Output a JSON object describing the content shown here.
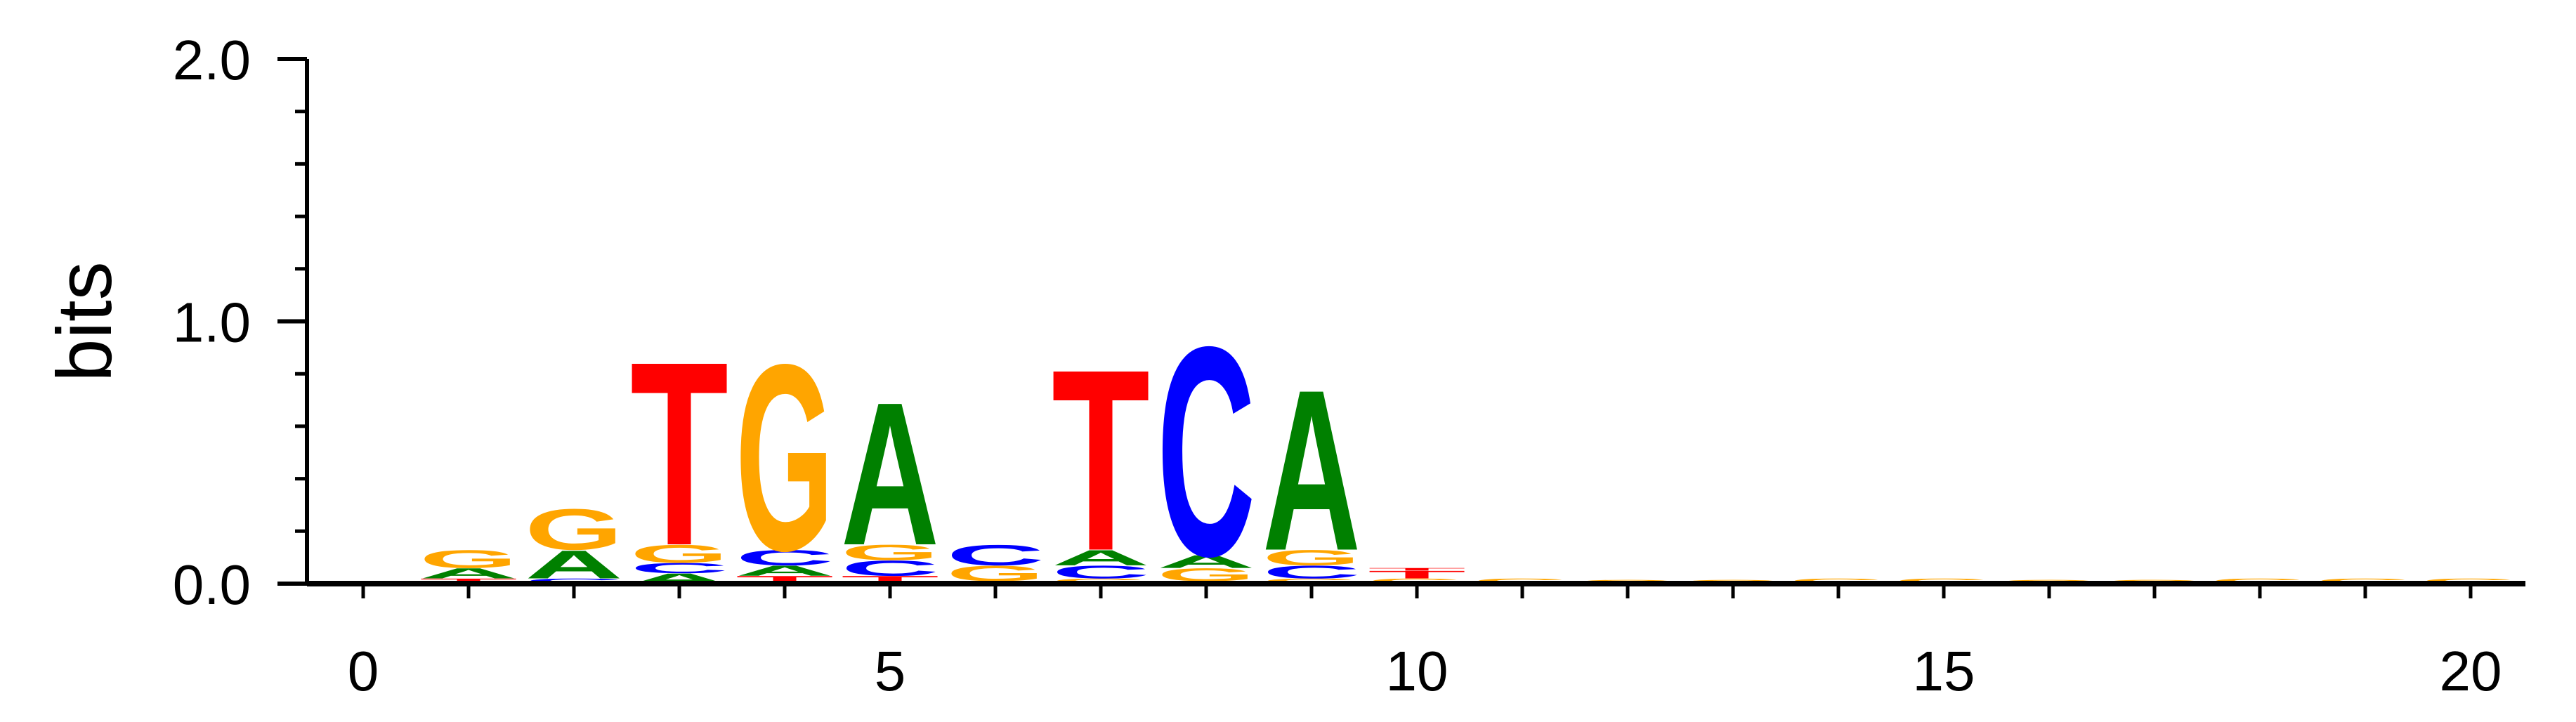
{
  "chart_data": {
    "type": "sequence-logo",
    "ylabel": "bits",
    "ylim": [
      0,
      2
    ],
    "xlim": [
      -0.5,
      20.5
    ],
    "y_ticks": [
      "0.0",
      "1.0",
      "2.0"
    ],
    "x_ticks": [
      "0",
      "5",
      "10",
      "15",
      "20"
    ],
    "colors": {
      "A": "#008000",
      "C": "#0000ff",
      "G": "#ffa500",
      "T": "#ff0000"
    },
    "positions": [
      {
        "pos": 1,
        "stack": [
          {
            "base": "T",
            "height": 0.02
          },
          {
            "base": "A",
            "height": 0.04
          },
          {
            "base": "G",
            "height": 0.07
          }
        ]
      },
      {
        "pos": 2,
        "stack": [
          {
            "base": "C",
            "height": 0.02
          },
          {
            "base": "A",
            "height": 0.11
          },
          {
            "base": "G",
            "height": 0.16
          }
        ]
      },
      {
        "pos": 3,
        "stack": [
          {
            "base": "A",
            "height": 0.04
          },
          {
            "base": "C",
            "height": 0.04
          },
          {
            "base": "G",
            "height": 0.07
          },
          {
            "base": "T",
            "height": 0.72
          }
        ]
      },
      {
        "pos": 4,
        "stack": [
          {
            "base": "T",
            "height": 0.03
          },
          {
            "base": "A",
            "height": 0.04
          },
          {
            "base": "C",
            "height": 0.06
          },
          {
            "base": "G",
            "height": 0.73
          }
        ]
      },
      {
        "pos": 5,
        "stack": [
          {
            "base": "T",
            "height": 0.03
          },
          {
            "base": "C",
            "height": 0.06
          },
          {
            "base": "G",
            "height": 0.06
          },
          {
            "base": "A",
            "height": 0.56
          }
        ]
      },
      {
        "pos": 6,
        "stack": [
          {
            "base": "T",
            "height": 0.01
          },
          {
            "base": "G",
            "height": 0.06
          },
          {
            "base": "C",
            "height": 0.08
          }
        ]
      },
      {
        "pos": 7,
        "stack": [
          {
            "base": "G",
            "height": 0.02
          },
          {
            "base": "C",
            "height": 0.05
          },
          {
            "base": "A",
            "height": 0.06
          },
          {
            "base": "T",
            "height": 0.71
          }
        ]
      },
      {
        "pos": 8,
        "stack": [
          {
            "base": "T",
            "height": 0.01
          },
          {
            "base": "G",
            "height": 0.05
          },
          {
            "base": "A",
            "height": 0.05
          },
          {
            "base": "C",
            "height": 0.82
          }
        ]
      },
      {
        "pos": 9,
        "stack": [
          {
            "base": "G",
            "height": 0.02
          },
          {
            "base": "C",
            "height": 0.05
          },
          {
            "base": "G",
            "height": 0.06
          },
          {
            "base": "A",
            "height": 0.63
          }
        ]
      },
      {
        "pos": 10,
        "stack": [
          {
            "base": "G",
            "height": 0.02
          },
          {
            "base": "T",
            "height": 0.03
          },
          {
            "base": "T",
            "height": 0.01
          }
        ]
      },
      {
        "pos": 11,
        "stack": [
          {
            "base": "G",
            "height": 0.02
          }
        ]
      },
      {
        "pos": 12,
        "stack": [
          {
            "base": "G",
            "height": 0.015
          }
        ]
      },
      {
        "pos": 13,
        "stack": [
          {
            "base": "G",
            "height": 0.015
          }
        ]
      },
      {
        "pos": 14,
        "stack": [
          {
            "base": "G",
            "height": 0.02
          }
        ]
      },
      {
        "pos": 15,
        "stack": [
          {
            "base": "G",
            "height": 0.02
          }
        ]
      },
      {
        "pos": 16,
        "stack": [
          {
            "base": "G",
            "height": 0.015
          }
        ]
      },
      {
        "pos": 17,
        "stack": [
          {
            "base": "G",
            "height": 0.015
          }
        ]
      },
      {
        "pos": 18,
        "stack": [
          {
            "base": "G",
            "height": 0.02
          }
        ]
      },
      {
        "pos": 19,
        "stack": [
          {
            "base": "G",
            "height": 0.02
          }
        ]
      },
      {
        "pos": 20,
        "stack": [
          {
            "base": "G",
            "height": 0.02
          }
        ]
      }
    ]
  }
}
